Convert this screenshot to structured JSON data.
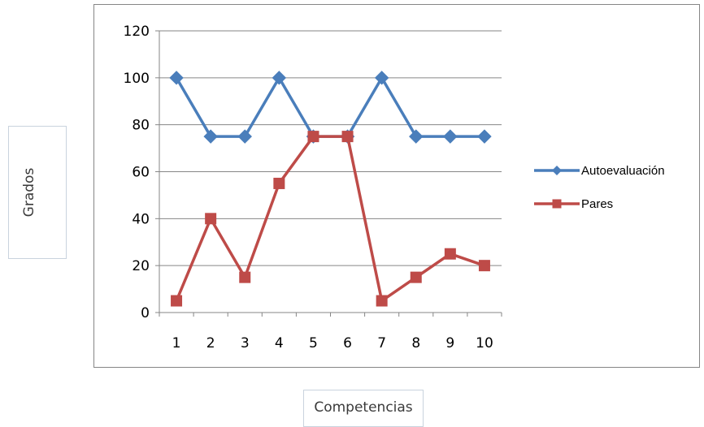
{
  "chart_data": {
    "type": "line",
    "categories": [
      "1",
      "2",
      "3",
      "4",
      "5",
      "6",
      "7",
      "8",
      "9",
      "10"
    ],
    "series": [
      {
        "name": "Autoevaluación",
        "values": [
          100,
          75,
          75,
          100,
          75,
          75,
          100,
          75,
          75,
          75
        ],
        "color": "#4a7ebb",
        "marker": "diamond"
      },
      {
        "name": "Pares",
        "values": [
          5,
          40,
          15,
          55,
          75,
          75,
          5,
          15,
          25,
          20
        ],
        "color": "#be4b48",
        "marker": "square"
      }
    ],
    "xlabel": "Competencias",
    "ylabel": "Grados",
    "ylim": [
      0,
      120
    ],
    "yticks": [
      0,
      20,
      40,
      60,
      80,
      100,
      120
    ],
    "grid": "horizontal",
    "legend_position": "right"
  }
}
